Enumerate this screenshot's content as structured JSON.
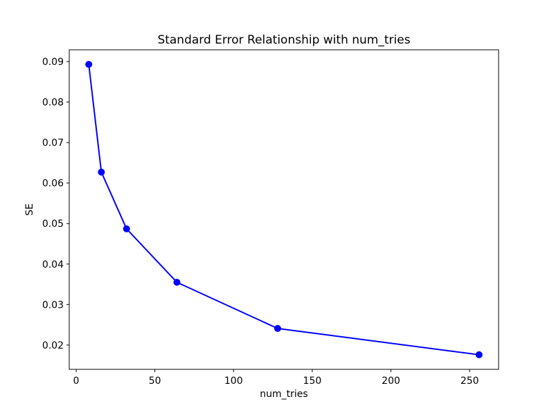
{
  "chart_data": {
    "type": "line",
    "title": "Standard Error Relationship with num_tries",
    "xlabel": "num_tries",
    "ylabel": "SE",
    "x": [
      8,
      16,
      32,
      64,
      128,
      256
    ],
    "y": [
      0.0893,
      0.0627,
      0.0487,
      0.0355,
      0.0241,
      0.0176
    ],
    "xlim": [
      -4.4,
      268.4
    ],
    "ylim": [
      0.014,
      0.0929
    ],
    "xticks": {
      "values": [
        0,
        50,
        100,
        150,
        200,
        250
      ],
      "labels": [
        "0",
        "50",
        "100",
        "150",
        "200",
        "250"
      ]
    },
    "yticks": {
      "values": [
        0.02,
        0.03,
        0.04,
        0.05,
        0.06,
        0.07,
        0.08,
        0.09
      ],
      "labels": [
        "0.02",
        "0.03",
        "0.04",
        "0.05",
        "0.06",
        "0.07",
        "0.08",
        "0.09"
      ]
    },
    "grid": false,
    "line_color": "#0000ff",
    "marker": "circle",
    "marker_color": "#0000ff",
    "axis_color": "#000000",
    "background_color": "#ffffff"
  }
}
